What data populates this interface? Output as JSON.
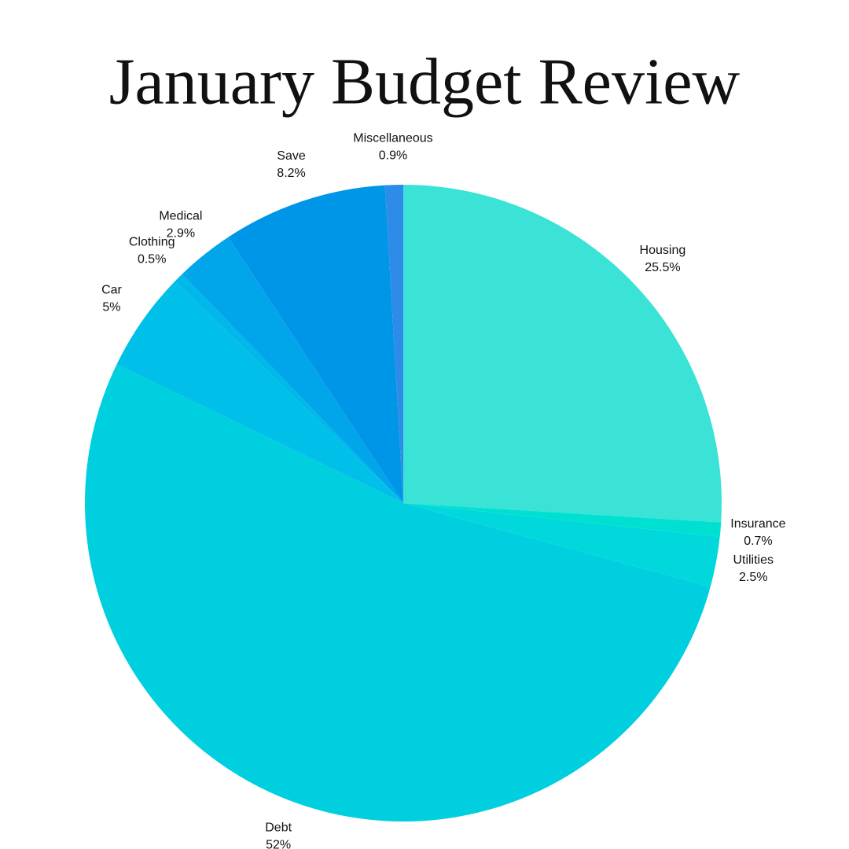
{
  "chart_data": {
    "type": "pie",
    "title": "January Budget Review",
    "categories": [
      "Housing",
      "Insurance",
      "Utilities",
      "Debt",
      "Car",
      "Clothing",
      "Medical",
      "Save",
      "Miscellaneous"
    ],
    "values": [
      25.5,
      0.7,
      2.5,
      52,
      5,
      0.5,
      2.9,
      8.2,
      0.9
    ],
    "value_labels": [
      "25.5%",
      "0.7%",
      "2.5%",
      "52%",
      "5%",
      "0.5%",
      "2.9%",
      "8.2%",
      "0.9%"
    ],
    "colors": [
      "#3ae3d5",
      "#00e0d0",
      "#00d8dc",
      "#00cfe0",
      "#00bfe8",
      "#00b8ea",
      "#00a5ea",
      "#0096e8",
      "#2f8be8"
    ]
  }
}
